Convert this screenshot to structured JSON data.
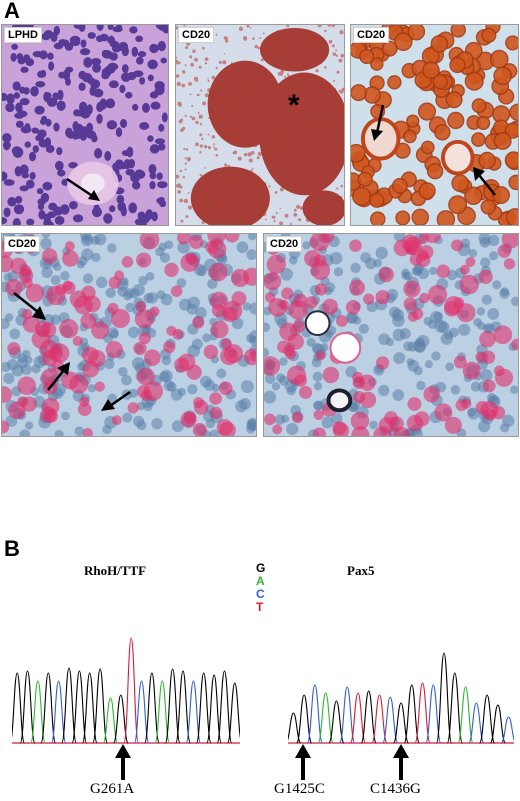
{
  "panel_a": {
    "letter": "A",
    "images": [
      {
        "label": "LPHD"
      },
      {
        "label": "CD20",
        "mark": "*"
      },
      {
        "label": "CD20"
      },
      {
        "label": "CD20"
      },
      {
        "label": "CD20"
      }
    ]
  },
  "panel_b": {
    "letter": "B",
    "left": {
      "gene": "RhoH/TTF",
      "mutations": [
        "G261A"
      ]
    },
    "right": {
      "gene": "Pax5",
      "mutations": [
        "G1425C",
        "C1436G"
      ]
    },
    "legend": [
      {
        "base": "G",
        "color": "#000000"
      },
      {
        "base": "A",
        "color": "#2eb82e"
      },
      {
        "base": "C",
        "color": "#2f5fd0"
      },
      {
        "base": "T",
        "color": "#d81b3a"
      }
    ]
  }
}
